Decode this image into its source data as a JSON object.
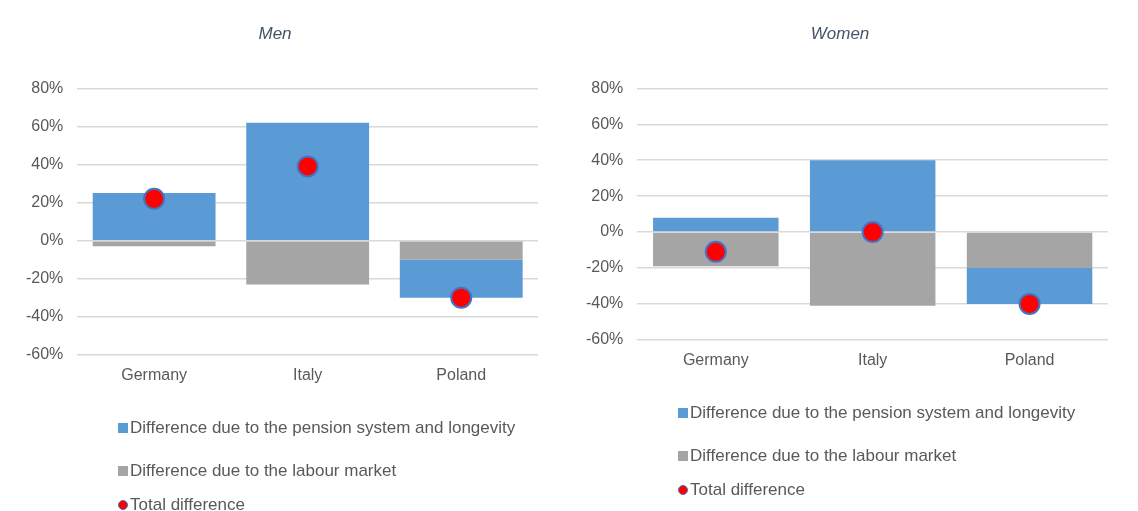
{
  "chart_data": [
    {
      "type": "bar",
      "title": "Men",
      "stacked": true,
      "categories": [
        "Germany",
        "Italy",
        "Poland"
      ],
      "series": [
        {
          "name": "Difference due to the labour market",
          "color": "#a5a5a5",
          "values": [
            -3,
            -23,
            -10
          ]
        },
        {
          "name": "Difference due to the pension system and longevity",
          "color": "#5b9bd5",
          "values": [
            25,
            62,
            -20
          ]
        },
        {
          "name": "Total difference",
          "type": "scatter",
          "marker": "circle",
          "color": "#ff0000",
          "x": [
            "Germany",
            "Italy",
            "Poland"
          ],
          "values": [
            22,
            39,
            -30
          ]
        }
      ],
      "ylim": [
        -60,
        80
      ],
      "yticks": [
        {
          "value": -60,
          "label": "-60%"
        },
        {
          "value": -40,
          "label": "-40%"
        },
        {
          "value": -20,
          "label": "-20%"
        },
        {
          "value": 0,
          "label": "0%"
        },
        {
          "value": 20,
          "label": "20%"
        },
        {
          "value": 40,
          "label": "40%"
        },
        {
          "value": 60,
          "label": "60%"
        },
        {
          "value": 80,
          "label": "80%"
        }
      ],
      "grid": "y",
      "legend": "bottom"
    },
    {
      "type": "bar",
      "title": "Women",
      "stacked": true,
      "categories": [
        "Germany",
        "Italy",
        "Poland"
      ],
      "series": [
        {
          "name": "Difference due to the labour market",
          "color": "#a5a5a5",
          "values": [
            -19,
            -41,
            -20
          ]
        },
        {
          "name": "Difference due to the pension system and longevity",
          "color": "#5b9bd5",
          "values": [
            8,
            40,
            -20
          ]
        },
        {
          "name": "Total difference",
          "type": "scatter",
          "marker": "circle",
          "color": "#ff0000",
          "x": [
            "Germany",
            "Italy",
            "Poland"
          ],
          "values": [
            -11,
            0,
            -40
          ]
        }
      ],
      "ylim": [
        -60,
        80
      ],
      "yticks": [
        {
          "value": -60,
          "label": "-60%"
        },
        {
          "value": -40,
          "label": "-40%"
        },
        {
          "value": -20,
          "label": "-20%"
        },
        {
          "value": 0,
          "label": "0%"
        },
        {
          "value": 20,
          "label": "20%"
        },
        {
          "value": 40,
          "label": "40%"
        },
        {
          "value": 60,
          "label": "60%"
        },
        {
          "value": 80,
          "label": "80%"
        }
      ],
      "grid": "y",
      "legend": "bottom"
    }
  ]
}
